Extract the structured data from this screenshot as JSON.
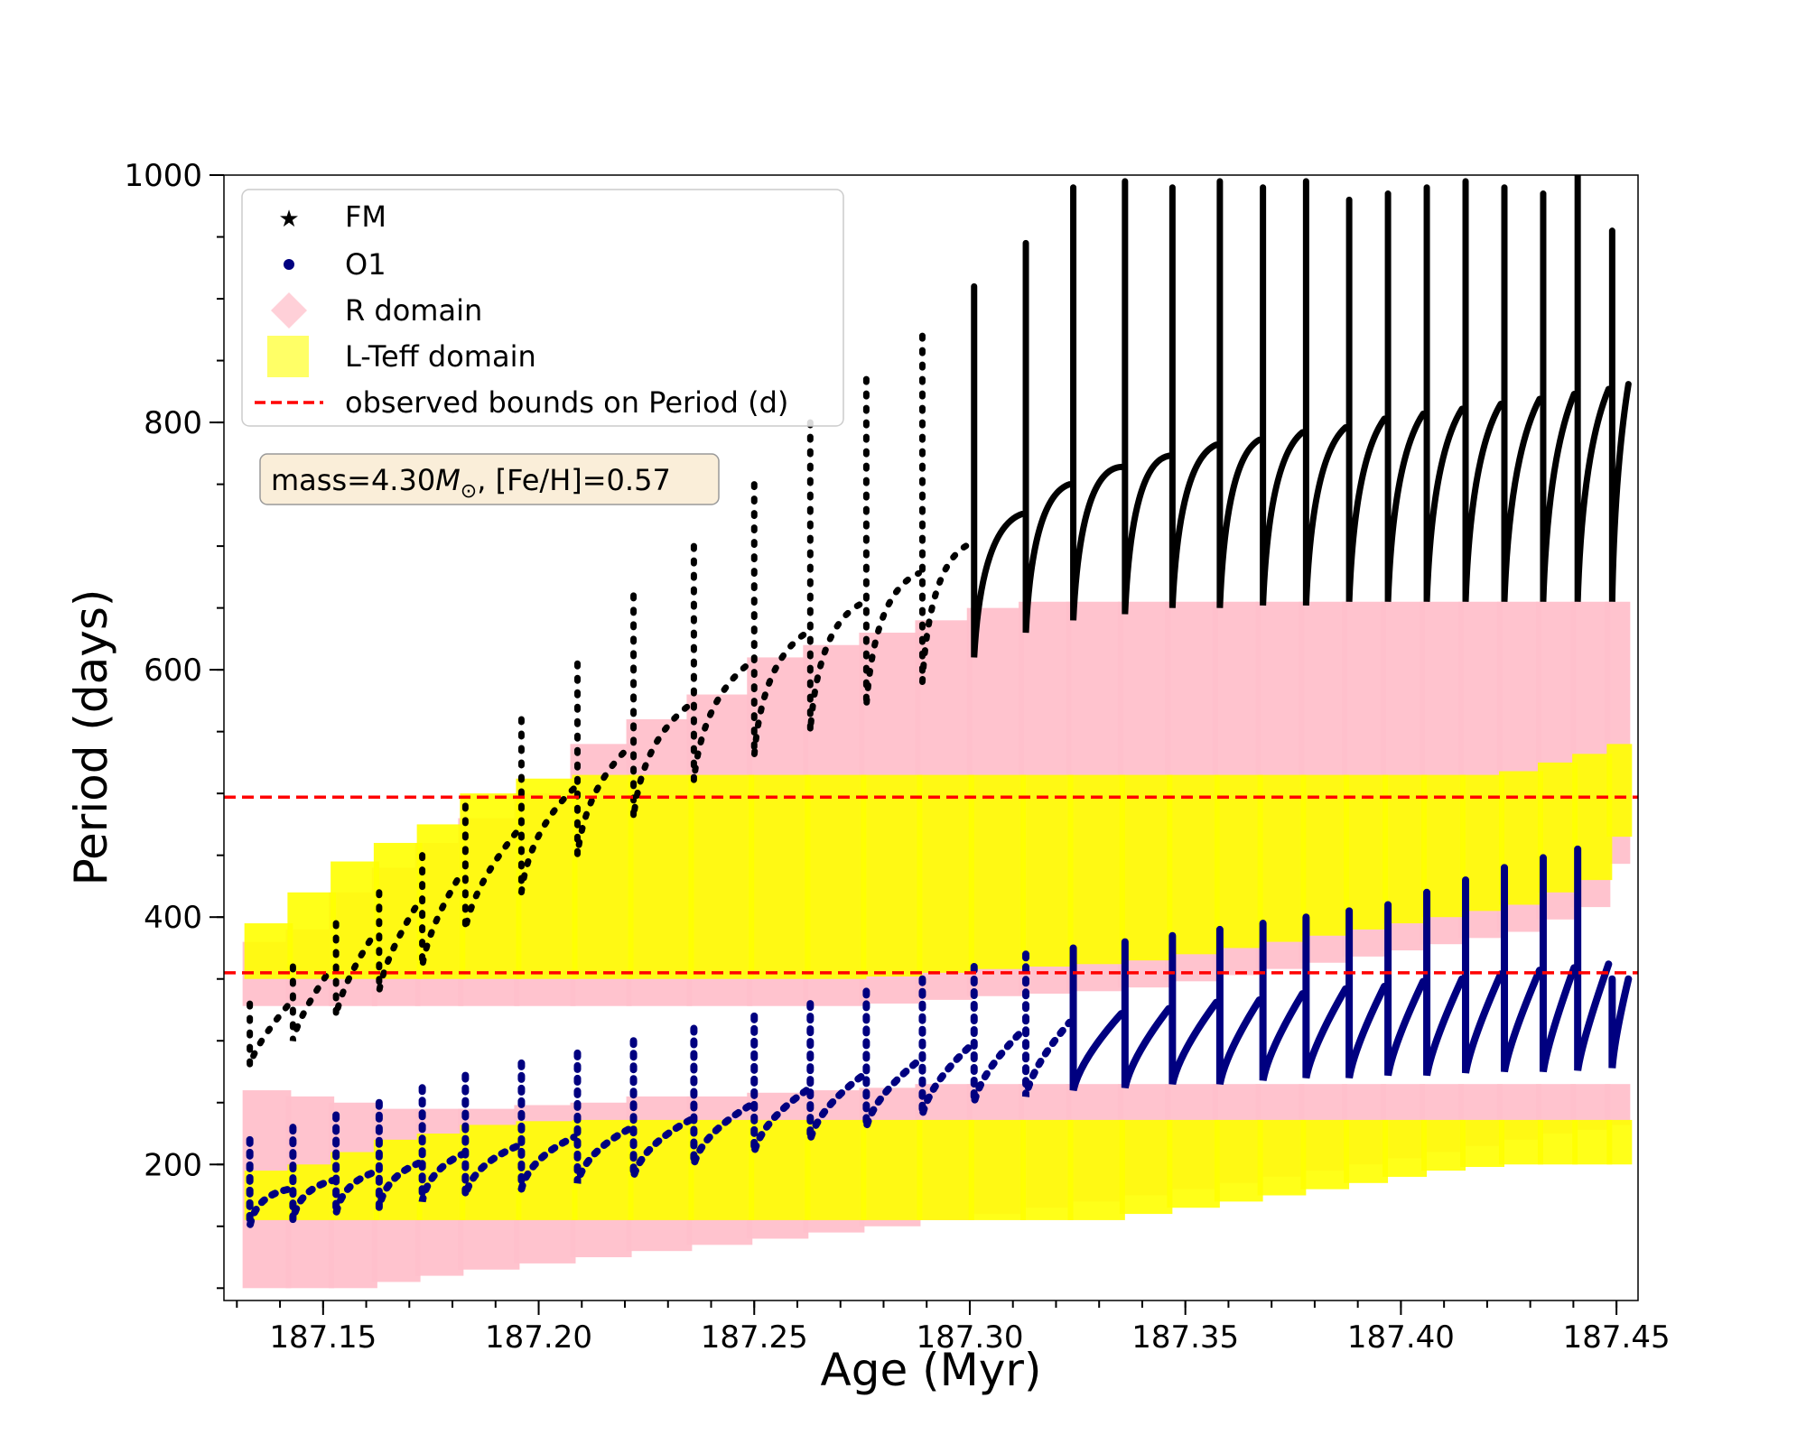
{
  "chart_data": {
    "type": "scatter",
    "title": "",
    "xlabel": "Age (Myr)",
    "ylabel": "Period (days)",
    "xlim": [
      187.127,
      187.455
    ],
    "ylim": [
      90,
      1000
    ],
    "x_ticks": [
      187.15,
      187.2,
      187.25,
      187.3,
      187.35,
      187.4,
      187.45
    ],
    "x_tick_labels": [
      "187.15",
      "187.20",
      "187.25",
      "187.30",
      "187.35",
      "187.40",
      "187.45"
    ],
    "y_ticks": [
      200,
      400,
      600,
      800,
      1000
    ],
    "y_tick_labels": [
      "200",
      "400",
      "600",
      "800",
      "1000"
    ],
    "grid": false,
    "legend_position": "top-left",
    "legend": [
      {
        "label": "FM",
        "marker": "star",
        "color": "#000000"
      },
      {
        "label": "O1",
        "marker": "circle",
        "color": "#000080"
      },
      {
        "label": "R domain",
        "marker": "diamond",
        "color": "#ffc0cb"
      },
      {
        "label": "L-Teff domain",
        "marker": "square",
        "color": "#ffff00"
      },
      {
        "label": "observed bounds on Period (d)",
        "marker": "dashed-line",
        "color": "#ff0000"
      }
    ],
    "annotation": {
      "text_prefix": "mass=4.30",
      "mass_symbol": "M",
      "sub_symbol": "⊙",
      "text_suffix": ", [Fe/H]=0.57"
    },
    "observed_bounds": [
      355,
      497
    ],
    "pulses": {
      "ages": [
        187.133,
        187.143,
        187.153,
        187.163,
        187.173,
        187.183,
        187.196,
        187.209,
        187.222,
        187.236,
        187.25,
        187.263,
        187.276,
        187.289,
        187.301,
        187.313,
        187.324,
        187.336,
        187.347,
        187.358,
        187.368,
        187.378,
        187.388,
        187.397,
        187.406,
        187.415,
        187.424,
        187.433,
        187.441,
        187.449
      ],
      "fm_min": [
        280,
        300,
        320,
        340,
        360,
        390,
        420,
        450,
        480,
        510,
        530,
        550,
        570,
        590,
        610,
        630,
        640,
        645,
        650,
        650,
        652,
        652,
        655,
        655,
        655,
        655,
        655,
        655,
        655,
        655
      ],
      "fm_max": [
        330,
        360,
        395,
        420,
        450,
        490,
        560,
        605,
        660,
        700,
        750,
        800,
        835,
        870,
        910,
        945,
        990,
        995,
        990,
        995,
        990,
        995,
        980,
        985,
        990,
        995,
        990,
        985,
        1000,
        955
      ],
      "o1_min": [
        150,
        155,
        160,
        165,
        170,
        175,
        180,
        185,
        190,
        200,
        210,
        220,
        230,
        240,
        250,
        255,
        260,
        262,
        265,
        265,
        268,
        270,
        270,
        272,
        272,
        274,
        275,
        275,
        276,
        278
      ],
      "o1_max": [
        220,
        230,
        240,
        250,
        262,
        272,
        282,
        290,
        300,
        310,
        320,
        330,
        340,
        350,
        360,
        370,
        375,
        380,
        385,
        390,
        395,
        400,
        405,
        410,
        420,
        430,
        440,
        448,
        455,
        350
      ],
      "r_hi_top": [
        380,
        390,
        420,
        440,
        460,
        480,
        500,
        540,
        560,
        580,
        610,
        620,
        630,
        640,
        650,
        655,
        655,
        655,
        655,
        655,
        655,
        655,
        655,
        655,
        655,
        655,
        655,
        655,
        655,
        655
      ],
      "r_lo_bottom": [
        100,
        100,
        100,
        105,
        110,
        115,
        120,
        125,
        130,
        135,
        140,
        145,
        150,
        155,
        160,
        165,
        170,
        175,
        180,
        185,
        190,
        195,
        200,
        205,
        210,
        215,
        220,
        225,
        228,
        232
      ],
      "r_lo_top": [
        260,
        255,
        250,
        245,
        245,
        245,
        248,
        250,
        255,
        255,
        258,
        260,
        262,
        265,
        265,
        265,
        265,
        265,
        265,
        265,
        265,
        265,
        265,
        265,
        265,
        265,
        265,
        265,
        265,
        265
      ],
      "lteff_hi_bottom": [
        350,
        350,
        350,
        350,
        350,
        350,
        350,
        350,
        350,
        350,
        350,
        350,
        352,
        355,
        358,
        360,
        362,
        365,
        370,
        375,
        380,
        385,
        390,
        395,
        400,
        405,
        410,
        420,
        430,
        465
      ],
      "lteff_hi_top": [
        395,
        420,
        445,
        460,
        475,
        500,
        512,
        515,
        515,
        515,
        515,
        515,
        515,
        515,
        515,
        515,
        515,
        515,
        515,
        515,
        515,
        515,
        515,
        515,
        515,
        515,
        518,
        525,
        532,
        540
      ],
      "lteff_lo_bottom": [
        155,
        155,
        155,
        155,
        155,
        155,
        155,
        155,
        155,
        155,
        155,
        155,
        155,
        155,
        155,
        155,
        155,
        160,
        165,
        170,
        175,
        180,
        185,
        190,
        195,
        198,
        200,
        200,
        200,
        200
      ],
      "lteff_lo_top": [
        195,
        200,
        210,
        220,
        225,
        232,
        235,
        236,
        236,
        236,
        236,
        236,
        236,
        236,
        236,
        236,
        236,
        236,
        236,
        236,
        236,
        236,
        236,
        236,
        236,
        236,
        236,
        236,
        236,
        236
      ]
    }
  }
}
